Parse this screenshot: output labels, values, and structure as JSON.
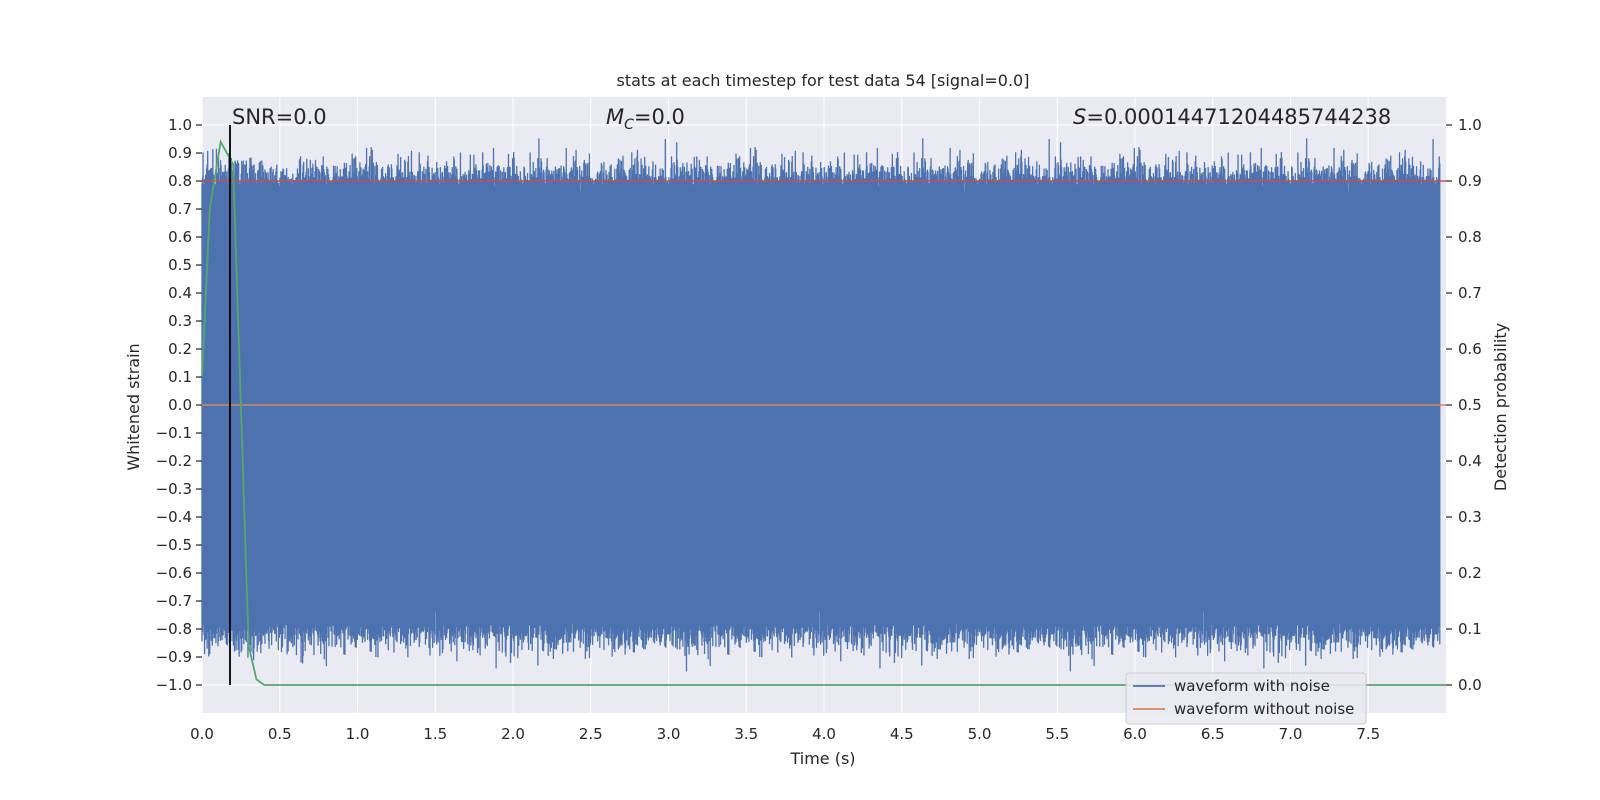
{
  "chart_data": {
    "type": "line",
    "title": "stats at each timestep for test data 54 [signal=0.0]",
    "xlabel": "Time (s)",
    "ylabel": "Whitened strain",
    "ylabel_right": "Detection probability",
    "xlim": [
      0.0,
      8.0
    ],
    "ylim": [
      -1.1,
      1.1
    ],
    "ylim_right": [
      -0.05,
      1.05
    ],
    "x_ticks": [
      "0.0",
      "0.5",
      "1.0",
      "1.5",
      "2.0",
      "2.5",
      "3.0",
      "3.5",
      "4.0",
      "4.5",
      "5.0",
      "5.5",
      "6.0",
      "6.5",
      "7.0",
      "7.5"
    ],
    "y_ticks": [
      "1.0",
      "0.9",
      "0.8",
      "0.7",
      "0.6",
      "0.5",
      "0.4",
      "0.3",
      "0.2",
      "0.1",
      "0.0",
      "−0.1",
      "−0.2",
      "−0.3",
      "−0.4",
      "−0.5",
      "−0.6",
      "−0.7",
      "−0.8",
      "−0.9",
      "−1.0"
    ],
    "y_right_ticks": [
      "1.0",
      "0.9",
      "0.8",
      "0.7",
      "0.6",
      "0.5",
      "0.4",
      "0.3",
      "0.2",
      "0.1",
      "0.0"
    ],
    "annotations": {
      "snr": "SNR=0.0",
      "mc_symbol": "M",
      "mc_sub": "C",
      "mc_value": "=0.0",
      "s_symbol": "S",
      "s_value": "=0.00014471204485744238"
    },
    "series": [
      {
        "name": "waveform with noise",
        "color": "#4c72b0",
        "description": "dense whitened noise spanning approx -1.0 to 1.0 over 0-8 s",
        "noise_min": -1.0,
        "noise_max": 1.0
      },
      {
        "name": "waveform without noise",
        "color": "#dd8452",
        "x": [
          0.0,
          8.0
        ],
        "y": [
          0.0,
          0.0
        ]
      },
      {
        "name": "detection probability",
        "color": "#55a868",
        "axis": "right",
        "x": [
          0.0,
          0.05,
          0.12,
          0.2,
          0.3,
          0.35,
          0.4,
          8.0
        ],
        "y": [
          0.55,
          0.85,
          0.97,
          0.93,
          0.07,
          0.01,
          0.0,
          0.0
        ]
      },
      {
        "name": "threshold",
        "color": "#c44e52",
        "axis": "right",
        "x": [
          0.0,
          8.0
        ],
        "y": [
          0.9,
          0.9
        ]
      }
    ],
    "vertical_line_x": 0.18,
    "legend": {
      "position": "lower-right",
      "entries": [
        {
          "label": "waveform with noise",
          "color": "#4c72b0"
        },
        {
          "label": "waveform without noise",
          "color": "#dd8452"
        }
      ]
    },
    "colors": {
      "background": "#eaeaf2",
      "grid": "#ffffff",
      "noise": "#4c72b0",
      "clean": "#dd8452",
      "probability": "#55a868",
      "threshold": "#c44e52",
      "vline": "#000000"
    }
  }
}
